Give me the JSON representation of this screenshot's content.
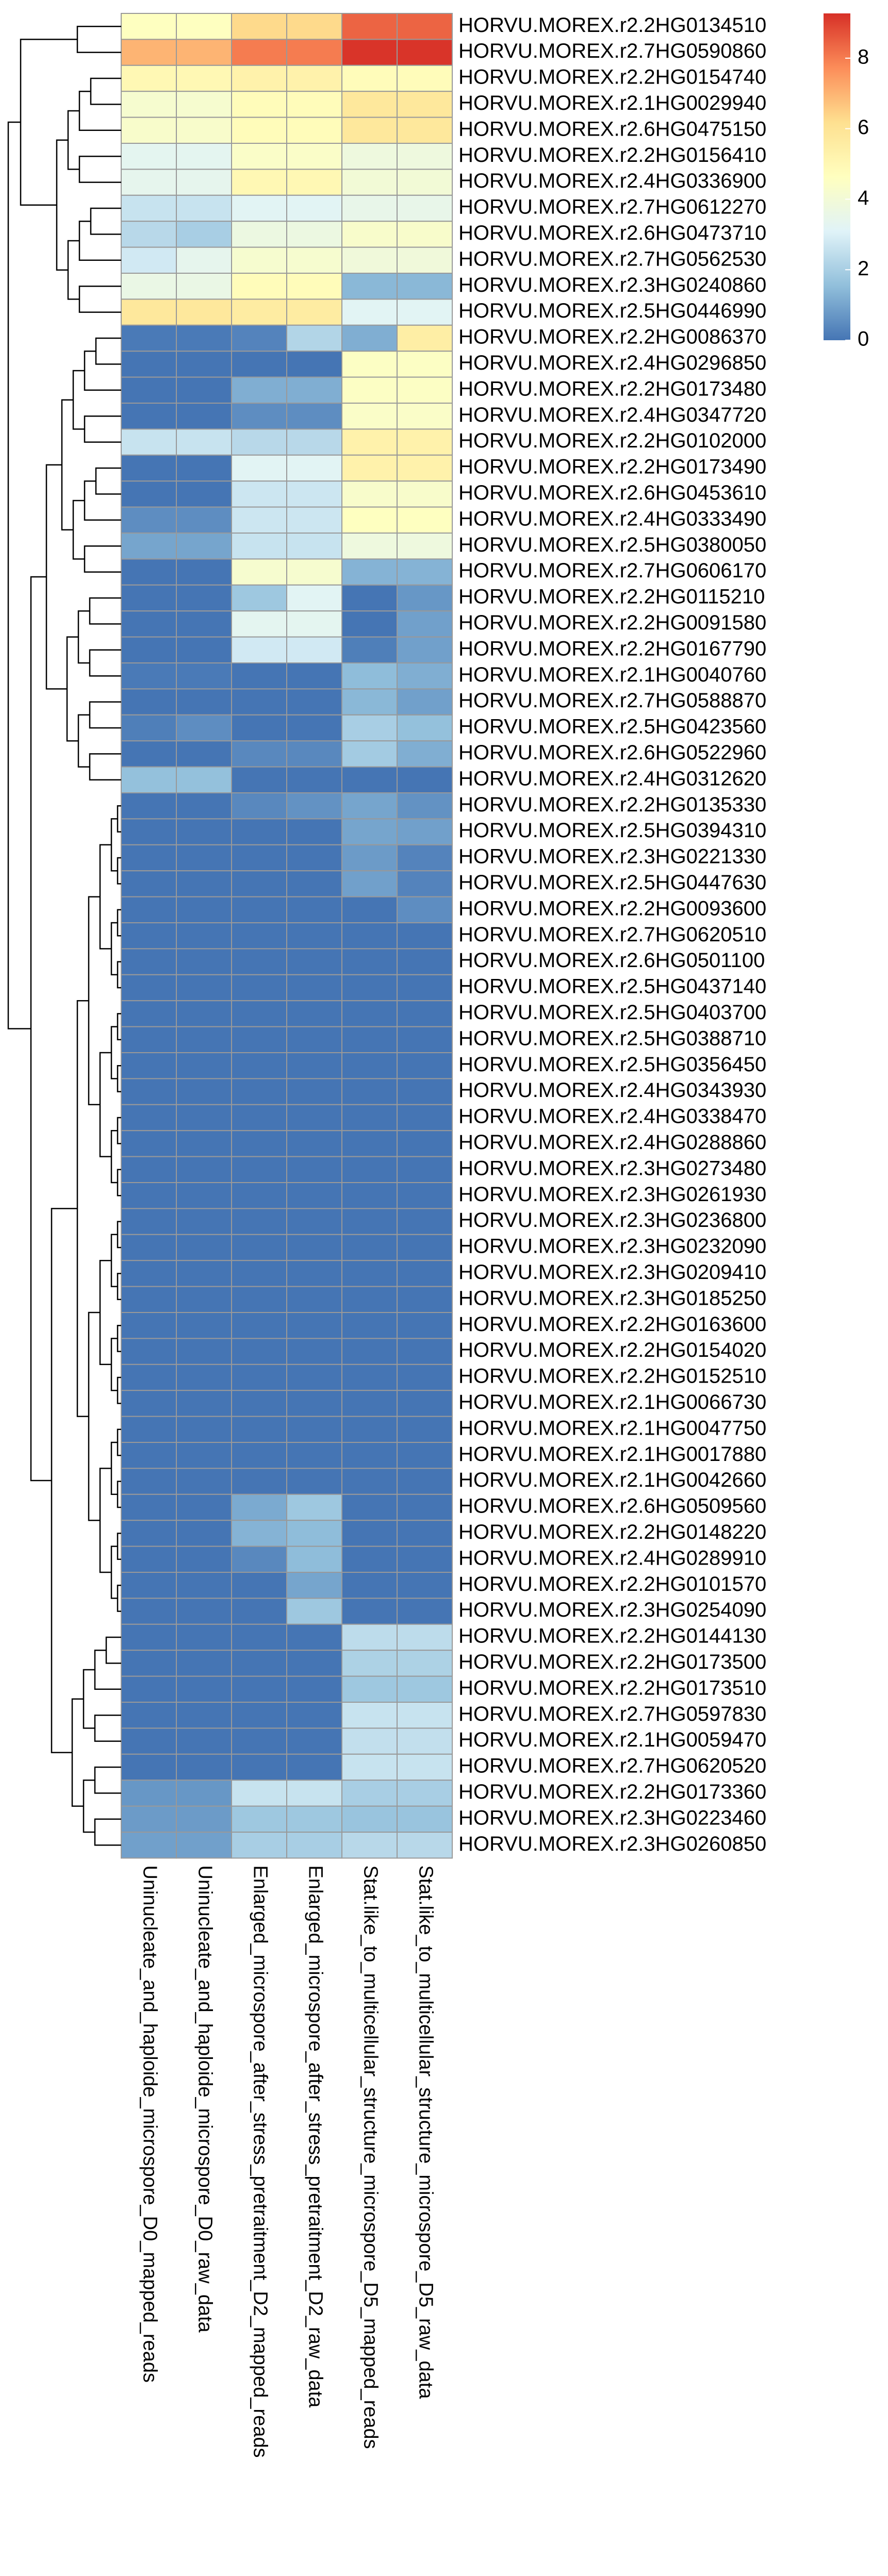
{
  "chart_data": {
    "type": "heatmap",
    "rows": [
      "HORVU.MOREX.r2.2HG0134510",
      "HORVU.MOREX.r2.7HG0590860",
      "HORVU.MOREX.r2.2HG0154740",
      "HORVU.MOREX.r2.1HG0029940",
      "HORVU.MOREX.r2.6HG0475150",
      "HORVU.MOREX.r2.2HG0156410",
      "HORVU.MOREX.r2.4HG0336900",
      "HORVU.MOREX.r2.7HG0612270",
      "HORVU.MOREX.r2.6HG0473710",
      "HORVU.MOREX.r2.7HG0562530",
      "HORVU.MOREX.r2.3HG0240860",
      "HORVU.MOREX.r2.5HG0446990",
      "HORVU.MOREX.r2.2HG0086370",
      "HORVU.MOREX.r2.4HG0296850",
      "HORVU.MOREX.r2.2HG0173480",
      "HORVU.MOREX.r2.4HG0347720",
      "HORVU.MOREX.r2.2HG0102000",
      "HORVU.MOREX.r2.2HG0173490",
      "HORVU.MOREX.r2.6HG0453610",
      "HORVU.MOREX.r2.4HG0333490",
      "HORVU.MOREX.r2.5HG0380050",
      "HORVU.MOREX.r2.7HG0606170",
      "HORVU.MOREX.r2.2HG0115210",
      "HORVU.MOREX.r2.2HG0091580",
      "HORVU.MOREX.r2.2HG0167790",
      "HORVU.MOREX.r2.1HG0040760",
      "HORVU.MOREX.r2.7HG0588870",
      "HORVU.MOREX.r2.5HG0423560",
      "HORVU.MOREX.r2.6HG0522960",
      "HORVU.MOREX.r2.4HG0312620",
      "HORVU.MOREX.r2.2HG0135330",
      "HORVU.MOREX.r2.5HG0394310",
      "HORVU.MOREX.r2.3HG0221330",
      "HORVU.MOREX.r2.5HG0447630",
      "HORVU.MOREX.r2.2HG0093600",
      "HORVU.MOREX.r2.7HG0620510",
      "HORVU.MOREX.r2.6HG0501100",
      "HORVU.MOREX.r2.5HG0437140",
      "HORVU.MOREX.r2.5HG0403700",
      "HORVU.MOREX.r2.5HG0388710",
      "HORVU.MOREX.r2.5HG0356450",
      "HORVU.MOREX.r2.4HG0343930",
      "HORVU.MOREX.r2.4HG0338470",
      "HORVU.MOREX.r2.4HG0288860",
      "HORVU.MOREX.r2.3HG0273480",
      "HORVU.MOREX.r2.3HG0261930",
      "HORVU.MOREX.r2.3HG0236800",
      "HORVU.MOREX.r2.3HG0232090",
      "HORVU.MOREX.r2.3HG0209410",
      "HORVU.MOREX.r2.3HG0185250",
      "HORVU.MOREX.r2.2HG0163600",
      "HORVU.MOREX.r2.2HG0154020",
      "HORVU.MOREX.r2.2HG0152510",
      "HORVU.MOREX.r2.1HG0066730",
      "HORVU.MOREX.r2.1HG0047750",
      "HORVU.MOREX.r2.1HG0017880",
      "HORVU.MOREX.r2.1HG0042660",
      "HORVU.MOREX.r2.6HG0509560",
      "HORVU.MOREX.r2.2HG0148220",
      "HORVU.MOREX.r2.4HG0289910",
      "HORVU.MOREX.r2.2HG0101570",
      "HORVU.MOREX.r2.3HG0254090",
      "HORVU.MOREX.r2.2HG0144130",
      "HORVU.MOREX.r2.2HG0173500",
      "HORVU.MOREX.r2.2HG0173510",
      "HORVU.MOREX.r2.7HG0597830",
      "HORVU.MOREX.r2.1HG0059470",
      "HORVU.MOREX.r2.7HG0620520",
      "HORVU.MOREX.r2.2HG0173360",
      "HORVU.MOREX.r2.3HG0223460",
      "HORVU.MOREX.r2.3HG0260850"
    ],
    "columns": [
      "Uninucleate_and_haploide_microspore_D0_mapped_reads",
      "Uninucleate_and_haploide_microspore_D0_raw_data",
      "Enlarged_microspore_after_stress_pretraitment_D2_mapped_reads",
      "Enlarged_microspore_after_stress_pretraitment_D2_raw_data",
      "Stat.like_to_multicellular_structure_microspore_D5_mapped_reads",
      "Stat.like_to_multicellular_structure_microspore_D5_raw_data"
    ],
    "values": [
      [
        4.6,
        4.6,
        6.3,
        6.3,
        8.4,
        8.4
      ],
      [
        7.0,
        7.0,
        8.0,
        8.0,
        9.2,
        9.2
      ],
      [
        5.0,
        5.0,
        5.3,
        5.3,
        4.8,
        4.8
      ],
      [
        4.2,
        4.2,
        4.8,
        4.8,
        5.8,
        5.8
      ],
      [
        4.3,
        4.3,
        4.8,
        4.8,
        5.8,
        5.8
      ],
      [
        3.3,
        3.3,
        4.4,
        4.4,
        3.8,
        3.8
      ],
      [
        3.4,
        3.4,
        5.0,
        5.0,
        4.0,
        4.0
      ],
      [
        2.6,
        2.6,
        3.2,
        3.2,
        3.5,
        3.5
      ],
      [
        2.3,
        2.0,
        3.7,
        3.7,
        4.3,
        4.3
      ],
      [
        2.8,
        3.4,
        4.2,
        4.2,
        3.9,
        3.9
      ],
      [
        3.6,
        3.6,
        4.8,
        4.8,
        1.4,
        1.4
      ],
      [
        5.8,
        5.8,
        5.6,
        5.6,
        3.2,
        3.2
      ],
      [
        0.1,
        0.1,
        0.3,
        2.2,
        1.2,
        5.5
      ],
      [
        0,
        0,
        0,
        0,
        4.5,
        4.5
      ],
      [
        0,
        0,
        1.2,
        1.2,
        4.5,
        4.5
      ],
      [
        0,
        0,
        0.5,
        0.5,
        4.4,
        4.4
      ],
      [
        2.6,
        2.6,
        2.3,
        2.3,
        5.3,
        5.3
      ],
      [
        0,
        0,
        3.2,
        3.2,
        5.3,
        5.3
      ],
      [
        0,
        0,
        2.7,
        2.7,
        4.3,
        4.3
      ],
      [
        0.5,
        0.5,
        2.7,
        2.7,
        4.6,
        4.6
      ],
      [
        1.0,
        1.0,
        2.6,
        2.6,
        3.8,
        3.8
      ],
      [
        0,
        0,
        4.2,
        4.2,
        1.3,
        1.3
      ],
      [
        0,
        0,
        1.8,
        3.2,
        0,
        0.7
      ],
      [
        0,
        0,
        3.3,
        3.3,
        0,
        0.9
      ],
      [
        0,
        0,
        2.8,
        2.8,
        0.2,
        0.9
      ],
      [
        0.1,
        0.1,
        0,
        0,
        1.5,
        1.2
      ],
      [
        0,
        0,
        0,
        0,
        1.4,
        0.9
      ],
      [
        0.2,
        0.5,
        0,
        0,
        2.0,
        1.6
      ],
      [
        0,
        0,
        0.4,
        0.4,
        1.9,
        1.2
      ],
      [
        1.6,
        1.6,
        0,
        0,
        0,
        0
      ],
      [
        0,
        0,
        0.4,
        0.6,
        1.0,
        0.6
      ],
      [
        0,
        0,
        0,
        0,
        1.0,
        0.9
      ],
      [
        0,
        0,
        0,
        0,
        0.8,
        0.3
      ],
      [
        0,
        0,
        0,
        0,
        0.9,
        0.3
      ],
      [
        0,
        0,
        0,
        0,
        0,
        0.5
      ],
      [
        0,
        0,
        0,
        0,
        0,
        0
      ],
      [
        0,
        0,
        0,
        0,
        0,
        0
      ],
      [
        0,
        0,
        0,
        0,
        0,
        0
      ],
      [
        0,
        0,
        0,
        0,
        0,
        0
      ],
      [
        0,
        0,
        0,
        0,
        0,
        0
      ],
      [
        0,
        0,
        0,
        0,
        0,
        0
      ],
      [
        0,
        0,
        0,
        0,
        0,
        0
      ],
      [
        0,
        0,
        0,
        0,
        0,
        0
      ],
      [
        0,
        0,
        0,
        0,
        0,
        0
      ],
      [
        0,
        0,
        0,
        0,
        0,
        0
      ],
      [
        0,
        0,
        0,
        0,
        0,
        0
      ],
      [
        0,
        0,
        0,
        0,
        0,
        0
      ],
      [
        0,
        0,
        0,
        0,
        0,
        0
      ],
      [
        0,
        0,
        0,
        0,
        0,
        0
      ],
      [
        0,
        0,
        0,
        0,
        0,
        0
      ],
      [
        0,
        0,
        0,
        0,
        0,
        0
      ],
      [
        0,
        0,
        0,
        0,
        0,
        0
      ],
      [
        0,
        0,
        0,
        0,
        0,
        0
      ],
      [
        0,
        0,
        0,
        0,
        0,
        0
      ],
      [
        0,
        0,
        0,
        0,
        0,
        0
      ],
      [
        0,
        0,
        0,
        0,
        0,
        0
      ],
      [
        0,
        0,
        0,
        0,
        0,
        0
      ],
      [
        0,
        0,
        1.1,
        1.8,
        0,
        0
      ],
      [
        0,
        0,
        1.3,
        1.5,
        0,
        0
      ],
      [
        0,
        0,
        0.4,
        1.5,
        0,
        0
      ],
      [
        0,
        0,
        0,
        1.0,
        0,
        0
      ],
      [
        0,
        0,
        0,
        1.8,
        0,
        0
      ],
      [
        0,
        0,
        0,
        0,
        2.4,
        2.4
      ],
      [
        0,
        0,
        0,
        0,
        2.1,
        2.1
      ],
      [
        0,
        0,
        0,
        0,
        1.8,
        1.8
      ],
      [
        0,
        0,
        0,
        0,
        2.6,
        2.6
      ],
      [
        0,
        0,
        0,
        0,
        2.5,
        2.5
      ],
      [
        0,
        0,
        0,
        0,
        2.6,
        2.6
      ],
      [
        0.7,
        0.7,
        2.6,
        2.6,
        2.0,
        2.0
      ],
      [
        0.8,
        0.8,
        1.8,
        1.8,
        1.7,
        1.7
      ],
      [
        0.9,
        0.9,
        2.0,
        2.0,
        2.3,
        2.3
      ]
    ],
    "clim": [
      0,
      9.27
    ],
    "colorbar_ticks": [
      0,
      2,
      4,
      6,
      8
    ],
    "colors": [
      "#4575B4",
      "#91BFDB",
      "#E0F3F8",
      "#FFFFBF",
      "#FEE090",
      "#FC8D59",
      "#D73027"
    ]
  }
}
